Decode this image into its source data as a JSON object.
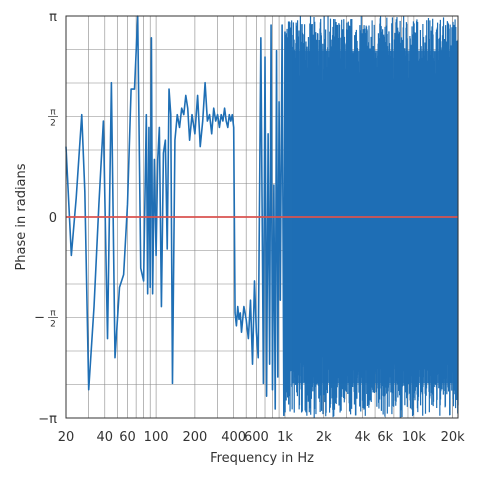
{
  "chart_data": {
    "type": "line",
    "xlabel": "Frequency in Hz",
    "ylabel": "Phase in radians",
    "x_scale": "log",
    "xlim": [
      20,
      22000
    ],
    "ylim": [
      -3.14159,
      3.14159
    ],
    "grid": true,
    "x_ticks": [
      {
        "value": 20,
        "label": "20"
      },
      {
        "value": 40,
        "label": "40"
      },
      {
        "value": 60,
        "label": "60"
      },
      {
        "value": 100,
        "label": "100"
      },
      {
        "value": 200,
        "label": "200"
      },
      {
        "value": 400,
        "label": "400"
      },
      {
        "value": 600,
        "label": "600"
      },
      {
        "value": 1000,
        "label": "1k"
      },
      {
        "value": 2000,
        "label": "2k"
      },
      {
        "value": 4000,
        "label": "4k"
      },
      {
        "value": 6000,
        "label": "6k"
      },
      {
        "value": 10000,
        "label": "10k"
      },
      {
        "value": 20000,
        "label": "20k"
      }
    ],
    "y_ticks": [
      {
        "value": 3.14159,
        "label": "π"
      },
      {
        "value": 1.5708,
        "label": "π/2"
      },
      {
        "value": 0,
        "label": "0"
      },
      {
        "value": -1.5708,
        "label": "−π/2"
      },
      {
        "value": -3.14159,
        "label": "−π"
      }
    ],
    "colors": {
      "phase": "#1f6fb5",
      "zero_line": "#d9534f",
      "grid": "#888888"
    },
    "series": [
      {
        "key": "phase",
        "x": [
          20,
          22,
          24,
          26.5,
          28,
          30,
          33,
          36,
          39,
          42,
          45,
          48,
          52,
          56,
          60,
          64,
          68,
          72,
          76,
          80,
          84,
          86,
          88,
          90,
          92,
          94,
          97,
          100,
          103,
          106,
          110,
          114,
          118,
          122,
          126,
          130,
          134,
          140,
          146,
          152,
          158,
          164,
          170,
          176,
          182,
          190,
          200,
          210,
          220,
          230,
          240,
          250,
          260,
          270,
          280,
          290,
          300,
          310,
          320,
          330,
          340,
          350,
          360,
          370,
          380,
          390,
          400,
          410,
          420,
          430,
          440,
          450,
          460,
          480,
          500,
          520,
          540,
          560,
          580,
          600,
          620,
          650,
          680,
          700,
          720,
          740,
          760,
          780,
          800,
          820,
          840,
          860,
          880,
          900,
          920,
          950,
          980,
          1000
        ],
        "y": [
          1.1,
          -0.6,
          0.3,
          1.6,
          0.4,
          -2.7,
          -1.4,
          0.2,
          1.5,
          -1.9,
          2.1,
          -2.2,
          -1.1,
          -0.9,
          0.2,
          2.0,
          2.0,
          3.14,
          -0.8,
          -1.0,
          1.6,
          -1.2,
          1.4,
          -1.1,
          2.8,
          -1.2,
          0.9,
          -0.6,
          0.9,
          1.4,
          -1.4,
          1.0,
          1.2,
          -0.5,
          2.0,
          1.6,
          -2.6,
          1.2,
          1.6,
          1.4,
          1.7,
          1.6,
          1.9,
          1.7,
          1.2,
          1.6,
          1.3,
          1.9,
          1.1,
          1.5,
          2.1,
          1.5,
          1.6,
          1.3,
          1.7,
          1.5,
          1.6,
          1.4,
          1.6,
          1.5,
          1.7,
          1.5,
          1.4,
          1.6,
          1.5,
          1.6,
          1.4,
          -1.5,
          -1.7,
          -1.4,
          -1.6,
          -1.5,
          -1.8,
          -1.4,
          -1.6,
          -1.9,
          -1.3,
          -2.3,
          -1.0,
          -1.8,
          -2.2,
          2.8,
          -2.6,
          2.5,
          -2.8,
          1.3,
          -2.3,
          3.0,
          -2.7,
          0.5,
          -3.0,
          2.6,
          -2.5,
          1.8,
          -1.3,
          3.0,
          -3.1,
          2.9
        ]
      }
    ],
    "dense_region": {
      "x_from": 1000,
      "x_to": 22000,
      "y_min": -3.14159,
      "y_max": 3.14159,
      "note": "rapid oscillation spanning full range"
    }
  }
}
